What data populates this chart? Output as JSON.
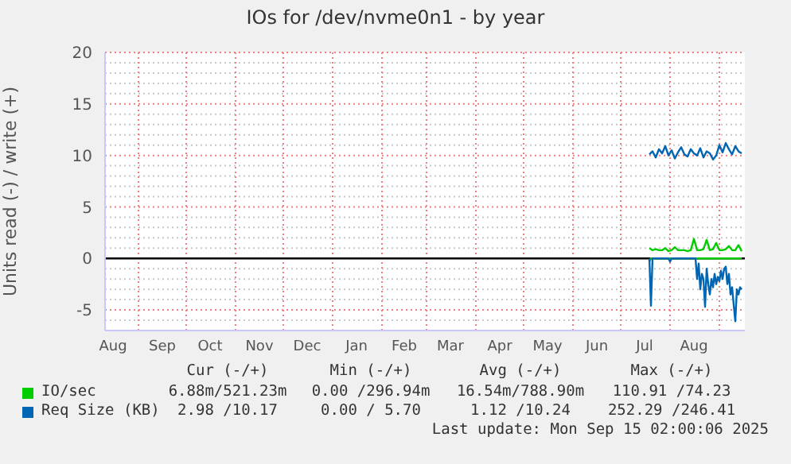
{
  "chart_data": {
    "type": "line",
    "title": "IOs for /dev/nvme0n1 - by year",
    "ylabel": "Units read (-) / write (+)",
    "xlim": [
      "2024-08-11",
      "2025-09-17"
    ],
    "xticks": [
      {
        "value": "2024-08-16",
        "label": "Aug"
      },
      {
        "value": "2024-09-01",
        "label": null
      },
      {
        "value": "2024-09-16",
        "label": "Sep"
      },
      {
        "value": "2024-10-01",
        "label": null
      },
      {
        "value": "2024-10-16",
        "label": "Oct"
      },
      {
        "value": "2024-11-01",
        "label": null
      },
      {
        "value": "2024-11-16",
        "label": "Nov"
      },
      {
        "value": "2024-12-01",
        "label": null
      },
      {
        "value": "2024-12-16",
        "label": "Dec"
      },
      {
        "value": "2025-01-01",
        "label": null
      },
      {
        "value": "2025-01-16",
        "label": "Jan"
      },
      {
        "value": "2025-02-01",
        "label": null
      },
      {
        "value": "2025-02-15",
        "label": "Feb"
      },
      {
        "value": "2025-03-01",
        "label": null
      },
      {
        "value": "2025-03-16",
        "label": "Mar"
      },
      {
        "value": "2025-04-01",
        "label": null
      },
      {
        "value": "2025-04-16",
        "label": "Apr"
      },
      {
        "value": "2025-05-01",
        "label": null
      },
      {
        "value": "2025-05-16",
        "label": "May"
      },
      {
        "value": "2025-06-01",
        "label": null
      },
      {
        "value": "2025-06-16",
        "label": "Jun"
      },
      {
        "value": "2025-07-01",
        "label": null
      },
      {
        "value": "2025-07-16",
        "label": "Jul"
      },
      {
        "value": "2025-08-01",
        "label": null
      },
      {
        "value": "2025-08-16",
        "label": "Aug"
      },
      {
        "value": "2025-09-01",
        "label": null
      }
    ],
    "ylim": [
      -7,
      20
    ],
    "yticks": [
      {
        "value": -6,
        "label": null
      },
      -5,
      {
        "value": -4,
        "label": null
      },
      {
        "value": -3,
        "label": null
      },
      {
        "value": -2,
        "label": null
      },
      {
        "value": -1,
        "label": null
      },
      0,
      {
        "value": 1,
        "label": null
      },
      {
        "value": 2,
        "label": null
      },
      {
        "value": 3,
        "label": null
      },
      {
        "value": 4,
        "label": null
      },
      5,
      {
        "value": 6,
        "label": null
      },
      {
        "value": 7,
        "label": null
      },
      {
        "value": 8,
        "label": null
      },
      {
        "value": 9,
        "label": null
      },
      10,
      {
        "value": 11,
        "label": null
      },
      {
        "value": 12,
        "label": null
      },
      {
        "value": 13,
        "label": null
      },
      {
        "value": 14,
        "label": null
      },
      15,
      {
        "value": 16,
        "label": null
      },
      {
        "value": 17,
        "label": null
      },
      {
        "value": 18,
        "label": null
      },
      {
        "value": 19,
        "label": null
      },
      20
    ],
    "grid": true,
    "legend": "bottom",
    "ref_lines": [
      {
        "axis": "y",
        "value": 0,
        "color": "#000000"
      }
    ],
    "series": [
      {
        "name": "IO/sec",
        "color": "#00cc00",
        "x": [
          "2025-07-19",
          "2025-07-21",
          "2025-07-23",
          "2025-07-25",
          "2025-07-27",
          "2025-07-29",
          "2025-07-31",
          "2025-08-02",
          "2025-08-04",
          "2025-08-06",
          "2025-08-08",
          "2025-08-10",
          "2025-08-12",
          "2025-08-14",
          "2025-08-16",
          "2025-08-18",
          "2025-08-20",
          "2025-08-22",
          "2025-08-24",
          "2025-08-26",
          "2025-08-28",
          "2025-08-30",
          "2025-09-01",
          "2025-09-03",
          "2025-09-05",
          "2025-09-07",
          "2025-09-09",
          "2025-09-11",
          "2025-09-13",
          "2025-09-15"
        ],
        "values": [
          1.0,
          0.8,
          0.9,
          0.8,
          0.8,
          1.0,
          0.7,
          0.8,
          1.1,
          0.8,
          0.8,
          0.8,
          0.7,
          0.8,
          1.9,
          0.8,
          0.8,
          0.9,
          1.8,
          0.8,
          0.9,
          1.5,
          0.8,
          0.8,
          0.9,
          1.2,
          0.8,
          0.8,
          1.3,
          0.7
        ]
      },
      {
        "color": "#00cc00",
        "x": [
          "2025-07-19",
          "2025-07-20",
          "2025-09-15"
        ],
        "values": [
          -0.3,
          0,
          0
        ]
      },
      {
        "name": "Req Size (KB)",
        "color": "#0066b3",
        "x": [
          "2025-07-19",
          "2025-07-21",
          "2025-07-23",
          "2025-07-25",
          "2025-07-27",
          "2025-07-29",
          "2025-07-31",
          "2025-08-02",
          "2025-08-04",
          "2025-08-06",
          "2025-08-08",
          "2025-08-10",
          "2025-08-12",
          "2025-08-14",
          "2025-08-16",
          "2025-08-18",
          "2025-08-20",
          "2025-08-22",
          "2025-08-24",
          "2025-08-26",
          "2025-08-28",
          "2025-08-30",
          "2025-09-01",
          "2025-09-03",
          "2025-09-05",
          "2025-09-07",
          "2025-09-09",
          "2025-09-11",
          "2025-09-13",
          "2025-09-15"
        ],
        "values": [
          10.1,
          10.4,
          9.8,
          10.6,
          10.2,
          10.9,
          10.0,
          10.5,
          9.7,
          10.3,
          10.8,
          10.1,
          9.9,
          10.6,
          10.2,
          10.0,
          10.7,
          9.8,
          10.4,
          10.2,
          9.6,
          10.0,
          11.0,
          10.3,
          11.2,
          10.6,
          10.1,
          10.9,
          10.4,
          10.2
        ]
      },
      {
        "color": "#0066b3",
        "x": [
          "2025-07-19",
          "2025-07-20",
          "2025-07-21",
          "2025-07-31",
          "2025-08-01",
          "2025-08-02",
          "2025-08-17",
          "2025-08-18",
          "2025-08-19",
          "2025-08-20",
          "2025-08-21",
          "2025-08-22",
          "2025-08-23",
          "2025-08-24",
          "2025-08-25",
          "2025-08-26",
          "2025-08-27",
          "2025-08-28",
          "2025-08-29",
          "2025-08-30",
          "2025-08-31",
          "2025-09-01",
          "2025-09-02",
          "2025-09-03",
          "2025-09-04",
          "2025-09-05",
          "2025-09-06",
          "2025-09-07",
          "2025-09-08",
          "2025-09-09",
          "2025-09-10",
          "2025-09-11",
          "2025-09-12",
          "2025-09-13",
          "2025-09-14",
          "2025-09-15"
        ],
        "values": [
          0,
          -4.6,
          0,
          0,
          -0.3,
          0,
          0,
          -2.0,
          -0.5,
          -3.0,
          -1.5,
          -2.0,
          -4.7,
          -1.0,
          -2.5,
          -3.5,
          -2.0,
          -2.8,
          -1.5,
          -2.5,
          -1.8,
          -2.2,
          -1.2,
          -2.0,
          -1.0,
          -0.8,
          -2.5,
          -1.5,
          -3.5,
          -2.8,
          -4.5,
          -6.1,
          -3.0,
          -3.5,
          -2.8,
          -3.0
        ]
      }
    ],
    "annotations": [
      "Cur (-/+)",
      "Min (-/+)",
      "Avg (-/+)",
      "Max (-/+)",
      "6.88m/521.23m",
      "0.00 /296.94m",
      "16.54m/788.90m",
      "110.91 /74.23",
      "2.98 /10.17",
      "0.00 / 5.70",
      "1.12 /10.24",
      "252.29 /246.41",
      "Last update: Mon Sep 15 02:00:06 2025"
    ]
  }
}
